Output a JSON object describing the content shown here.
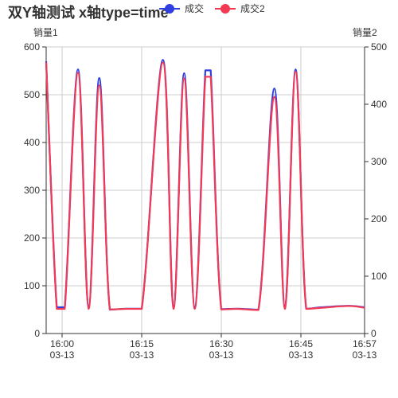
{
  "title": "双Y轴测试 x轴type=time",
  "colors": {
    "series1": "#2f3fe0",
    "series2": "#f23a55",
    "axis": "#333333",
    "grid": "#cccccc"
  },
  "chart_data": {
    "type": "line",
    "title": "双Y轴测试 x轴type=time",
    "y_left": {
      "name": "销量1",
      "ylim": [
        0,
        600
      ],
      "ticks": [
        0,
        100,
        200,
        300,
        400,
        500,
        600
      ]
    },
    "y_right": {
      "name": "销量2",
      "ylim": [
        0,
        500
      ],
      "ticks": [
        0,
        100,
        200,
        300,
        400,
        500
      ]
    },
    "x_axis": {
      "type": "time",
      "range": [
        "03-13 15:57",
        "03-13 16:57"
      ],
      "ticks": [
        {
          "t": "16:00",
          "time": "16:00",
          "date": "03-13"
        },
        {
          "t": "16:15",
          "time": "16:15",
          "date": "03-13"
        },
        {
          "t": "16:30",
          "time": "16:30",
          "date": "03-13"
        },
        {
          "t": "16:45",
          "time": "16:45",
          "date": "03-13"
        },
        {
          "t": "16:57",
          "time": "16:57",
          "date": "03-13"
        }
      ]
    },
    "grid": true,
    "legend": "top",
    "series": [
      {
        "name": "成交",
        "axis": "left",
        "points": [
          {
            "t": "15:57:00",
            "y": 570
          },
          {
            "t": "15:59:00",
            "y": 55
          },
          {
            "t": "16:00:30",
            "y": 55
          },
          {
            "t": "16:03:00",
            "y": 553
          },
          {
            "t": "16:05:00",
            "y": 55
          },
          {
            "t": "16:07:00",
            "y": 535
          },
          {
            "t": "16:09:00",
            "y": 50
          },
          {
            "t": "16:12:00",
            "y": 52
          },
          {
            "t": "16:15:00",
            "y": 52
          },
          {
            "t": "16:19:00",
            "y": 573
          },
          {
            "t": "16:21:00",
            "y": 55
          },
          {
            "t": "16:23:00",
            "y": 545
          },
          {
            "t": "16:25:00",
            "y": 55
          },
          {
            "t": "16:27:00",
            "y": 551
          },
          {
            "t": "16:28:00",
            "y": 551
          },
          {
            "t": "16:30:00",
            "y": 51
          },
          {
            "t": "16:33:00",
            "y": 52
          },
          {
            "t": "16:37:00",
            "y": 50
          },
          {
            "t": "16:40:00",
            "y": 513
          },
          {
            "t": "16:42:00",
            "y": 55
          },
          {
            "t": "16:44:00",
            "y": 553
          },
          {
            "t": "16:46:00",
            "y": 52
          },
          {
            "t": "16:49:00",
            "y": 55
          },
          {
            "t": "16:54:00",
            "y": 58
          },
          {
            "t": "16:57:00",
            "y": 55
          }
        ]
      },
      {
        "name": "成交2",
        "axis": "right",
        "points": [
          {
            "t": "15:57:00",
            "y": 473
          },
          {
            "t": "15:59:00",
            "y": 43
          },
          {
            "t": "16:00:30",
            "y": 43
          },
          {
            "t": "16:03:00",
            "y": 455
          },
          {
            "t": "16:05:00",
            "y": 43
          },
          {
            "t": "16:07:00",
            "y": 433
          },
          {
            "t": "16:09:00",
            "y": 42
          },
          {
            "t": "16:12:00",
            "y": 43
          },
          {
            "t": "16:15:00",
            "y": 43
          },
          {
            "t": "16:19:00",
            "y": 473
          },
          {
            "t": "16:21:00",
            "y": 43
          },
          {
            "t": "16:23:00",
            "y": 445
          },
          {
            "t": "16:25:00",
            "y": 43
          },
          {
            "t": "16:27:00",
            "y": 448
          },
          {
            "t": "16:28:00",
            "y": 448
          },
          {
            "t": "16:30:00",
            "y": 42
          },
          {
            "t": "16:33:00",
            "y": 43
          },
          {
            "t": "16:37:00",
            "y": 41
          },
          {
            "t": "16:40:00",
            "y": 413
          },
          {
            "t": "16:42:00",
            "y": 43
          },
          {
            "t": "16:44:00",
            "y": 457
          },
          {
            "t": "16:46:00",
            "y": 43
          },
          {
            "t": "16:49:00",
            "y": 45
          },
          {
            "t": "16:54:00",
            "y": 48
          },
          {
            "t": "16:57:00",
            "y": 45
          }
        ]
      }
    ]
  }
}
